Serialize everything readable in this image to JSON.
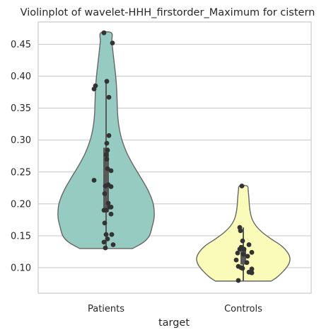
{
  "chart_data": {
    "type": "violin",
    "title": "Violinplot of wavelet-HHH_firstorder_Maximum for cistern",
    "xlabel": "target",
    "ylabel": "",
    "categories": [
      "Patients",
      "Controls"
    ],
    "ylim": [
      0.06,
      0.485
    ],
    "yticks": [
      0.1,
      0.15,
      0.2,
      0.25,
      0.3,
      0.35,
      0.4,
      0.45
    ],
    "ytick_labels": [
      "0.10",
      "0.15",
      "0.20",
      "0.25",
      "0.30",
      "0.35",
      "0.40",
      "0.45"
    ],
    "grid": "horizontal",
    "legend": "none",
    "colors": {
      "Patients": "#96cbc1",
      "Controls": "#fafab9",
      "outline": "#666666",
      "points": "#333333",
      "box": "#595959",
      "grid": "#cccccc",
      "spine": "#cccccc"
    },
    "series": [
      {
        "category": "Patients",
        "violin_range": [
          0.13,
          0.468
        ],
        "density_profile": [
          [
            0.13,
            0.55
          ],
          [
            0.14,
            0.78
          ],
          [
            0.15,
            0.9
          ],
          [
            0.165,
            0.96
          ],
          [
            0.18,
            1.0
          ],
          [
            0.2,
            0.98
          ],
          [
            0.22,
            0.88
          ],
          [
            0.24,
            0.73
          ],
          [
            0.26,
            0.57
          ],
          [
            0.28,
            0.43
          ],
          [
            0.3,
            0.33
          ],
          [
            0.32,
            0.27
          ],
          [
            0.34,
            0.24
          ],
          [
            0.36,
            0.23
          ],
          [
            0.38,
            0.22
          ],
          [
            0.4,
            0.2
          ],
          [
            0.42,
            0.17
          ],
          [
            0.44,
            0.14
          ],
          [
            0.455,
            0.12
          ],
          [
            0.468,
            0.11
          ]
        ],
        "iqr": [
          0.187,
          0.288
        ],
        "whiskers": [
          0.131,
          0.39
        ],
        "points": [
          {
            "x": -0.03,
            "y": 0.468
          },
          {
            "x": 0.09,
            "y": 0.452
          },
          {
            "x": -0.15,
            "y": 0.385
          },
          {
            "x": -0.17,
            "y": 0.38
          },
          {
            "x": 0.01,
            "y": 0.392
          },
          {
            "x": 0.04,
            "y": 0.367
          },
          {
            "x": 0.04,
            "y": 0.307
          },
          {
            "x": 0.01,
            "y": 0.295
          },
          {
            "x": 0.02,
            "y": 0.284
          },
          {
            "x": 0.0,
            "y": 0.277
          },
          {
            "x": 0.01,
            "y": 0.27
          },
          {
            "x": 0.02,
            "y": 0.255
          },
          {
            "x": 0.07,
            "y": 0.252
          },
          {
            "x": -0.17,
            "y": 0.237
          },
          {
            "x": -0.01,
            "y": 0.228
          },
          {
            "x": 0.03,
            "y": 0.23
          },
          {
            "x": 0.07,
            "y": 0.227
          },
          {
            "x": -0.02,
            "y": 0.216
          },
          {
            "x": 0.03,
            "y": 0.201
          },
          {
            "x": 0.05,
            "y": 0.195
          },
          {
            "x": 0.07,
            "y": 0.195
          },
          {
            "x": -0.03,
            "y": 0.19
          },
          {
            "x": 0.0,
            "y": 0.19
          },
          {
            "x": 0.07,
            "y": 0.184
          },
          {
            "x": -0.02,
            "y": 0.17
          },
          {
            "x": 0.0,
            "y": 0.152
          },
          {
            "x": 0.08,
            "y": 0.152
          },
          {
            "x": 0.02,
            "y": 0.145
          },
          {
            "x": -0.03,
            "y": 0.14
          },
          {
            "x": -0.01,
            "y": 0.131
          },
          {
            "x": 0.1,
            "y": 0.136
          }
        ]
      },
      {
        "category": "Controls",
        "violin_range": [
          0.079,
          0.228
        ],
        "density_profile": [
          [
            0.079,
            0.58
          ],
          [
            0.085,
            0.7
          ],
          [
            0.095,
            0.84
          ],
          [
            0.105,
            0.94
          ],
          [
            0.115,
            0.97
          ],
          [
            0.125,
            0.91
          ],
          [
            0.135,
            0.78
          ],
          [
            0.145,
            0.58
          ],
          [
            0.155,
            0.4
          ],
          [
            0.165,
            0.27
          ],
          [
            0.175,
            0.19
          ],
          [
            0.185,
            0.15
          ],
          [
            0.195,
            0.13
          ],
          [
            0.205,
            0.12
          ],
          [
            0.215,
            0.11
          ],
          [
            0.222,
            0.1
          ],
          [
            0.228,
            0.08
          ]
        ],
        "iqr": [
          0.105,
          0.131
        ],
        "whiskers": [
          0.079,
          0.163
        ],
        "points": [
          {
            "x": -0.02,
            "y": 0.228
          },
          {
            "x": -0.05,
            "y": 0.163
          },
          {
            "x": -0.04,
            "y": 0.158
          },
          {
            "x": -0.01,
            "y": 0.142
          },
          {
            "x": 0.08,
            "y": 0.136
          },
          {
            "x": -0.05,
            "y": 0.129
          },
          {
            "x": -0.03,
            "y": 0.132
          },
          {
            "x": -0.01,
            "y": 0.13
          },
          {
            "x": 0.01,
            "y": 0.129
          },
          {
            "x": -0.08,
            "y": 0.123
          },
          {
            "x": 0.0,
            "y": 0.121
          },
          {
            "x": 0.12,
            "y": 0.124
          },
          {
            "x": 0.06,
            "y": 0.118
          },
          {
            "x": -0.1,
            "y": 0.112
          },
          {
            "x": 0.05,
            "y": 0.108
          },
          {
            "x": -0.07,
            "y": 0.102
          },
          {
            "x": -0.03,
            "y": 0.1
          },
          {
            "x": -0.01,
            "y": 0.099
          },
          {
            "x": 0.12,
            "y": 0.098
          },
          {
            "x": 0.08,
            "y": 0.093
          },
          {
            "x": 0.12,
            "y": 0.092
          },
          {
            "x": -0.07,
            "y": 0.08
          }
        ]
      }
    ]
  }
}
